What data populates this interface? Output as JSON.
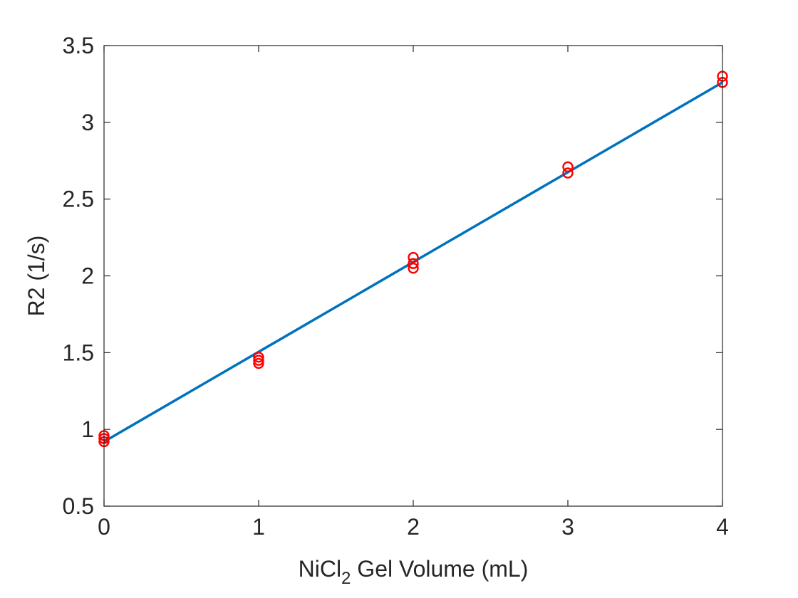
{
  "chart_data": {
    "type": "scatter",
    "title": "",
    "xlabel": {
      "main": "NiCl",
      "subscript": "2",
      "rest": " Gel Volume (mL)"
    },
    "ylabel": "R2 (1/s)",
    "xlim": [
      0,
      4
    ],
    "ylim": [
      0.5,
      3.5
    ],
    "xticks": [
      0,
      1,
      2,
      3,
      4
    ],
    "xtick_labels": [
      "0",
      "1",
      "2",
      "3",
      "4"
    ],
    "yticks": [
      0.5,
      1,
      1.5,
      2,
      2.5,
      3,
      3.5
    ],
    "ytick_labels": [
      "0.5",
      "1",
      "1.5",
      "2",
      "2.5",
      "3",
      "3.5"
    ],
    "grid": false,
    "legend": "none",
    "series": [
      {
        "kind": "scatter",
        "marker": "circle-open",
        "color": "#ff0000",
        "points": [
          {
            "x": 0,
            "y": 0.96
          },
          {
            "x": 0,
            "y": 0.94
          },
          {
            "x": 0,
            "y": 0.92
          },
          {
            "x": 1,
            "y": 1.47
          },
          {
            "x": 1,
            "y": 1.45
          },
          {
            "x": 1,
            "y": 1.43
          },
          {
            "x": 2,
            "y": 2.12
          },
          {
            "x": 2,
            "y": 2.08
          },
          {
            "x": 2,
            "y": 2.05
          },
          {
            "x": 3,
            "y": 2.71
          },
          {
            "x": 3,
            "y": 2.67
          },
          {
            "x": 4,
            "y": 3.3
          },
          {
            "x": 4,
            "y": 3.26
          }
        ]
      },
      {
        "kind": "line",
        "color": "#0072bd",
        "points": [
          {
            "x": 0,
            "y": 0.92
          },
          {
            "x": 4,
            "y": 3.26
          }
        ]
      }
    ]
  }
}
